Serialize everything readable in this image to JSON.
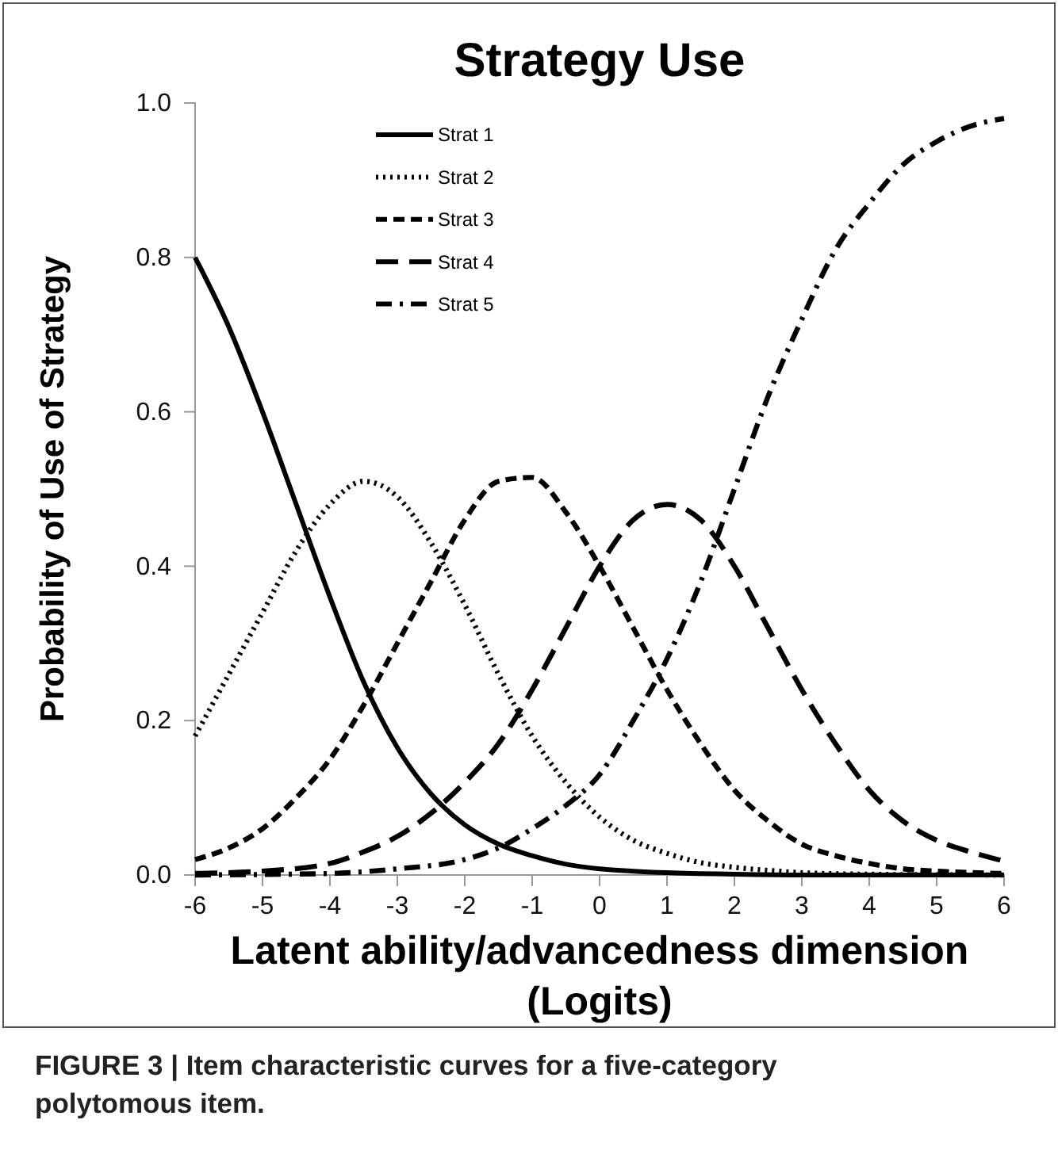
{
  "chart_data": {
    "type": "line",
    "title": "Strategy Use",
    "xlabel": "Latent ability/advancedness dimension (Logits)",
    "ylabel": "Probability of Use of Strategy",
    "xlim": [
      -6,
      6
    ],
    "xticks": [
      -6,
      -5,
      -4,
      -3,
      -2,
      -1,
      0,
      1,
      2,
      3,
      4,
      5,
      6
    ],
    "ylim": [
      0,
      1
    ],
    "yticks": [
      {
        "value": 0,
        "label": "0.0"
      },
      {
        "value": 0.2,
        "label": "0.2"
      },
      {
        "value": 0.4,
        "label": "0.4"
      },
      {
        "value": 0.6,
        "label": "0.6"
      },
      {
        "value": 0.8,
        "label": "0.8"
      },
      {
        "value": 1,
        "label": "1.0"
      }
    ],
    "grid": false,
    "legend": "top left",
    "marker": "none",
    "annotations": [
      "FIGURE 3 | Item characteristic curves for a five-category polytomous item."
    ],
    "series": [
      {
        "name": "Strat 1",
        "color": "#000000",
        "line_style": "solid",
        "x": [
          -6,
          -5.5,
          -5,
          -4.5,
          -4,
          -3.5,
          -3,
          -2.5,
          -2,
          -1.5,
          -1,
          -0.5,
          0,
          0.5,
          1,
          2,
          3,
          6
        ],
        "values": [
          0.8,
          0.71,
          0.6,
          0.48,
          0.36,
          0.25,
          0.165,
          0.105,
          0.065,
          0.04,
          0.025,
          0.014,
          0.008,
          0.005,
          0.003,
          0.001,
          0,
          0
        ]
      },
      {
        "name": "Strat 2",
        "color": "#000000",
        "line_style": "dotted",
        "x": [
          -6,
          -5.5,
          -5,
          -4.5,
          -4,
          -3.5,
          -3,
          -2.5,
          -2,
          -1.5,
          -1,
          -0.5,
          0,
          0.5,
          1,
          1.5,
          2,
          2.5,
          3,
          4,
          6
        ],
        "values": [
          0.18,
          0.26,
          0.34,
          0.42,
          0.48,
          0.51,
          0.49,
          0.43,
          0.35,
          0.26,
          0.18,
          0.12,
          0.075,
          0.045,
          0.028,
          0.016,
          0.01,
          0.006,
          0.003,
          0.001,
          0
        ]
      },
      {
        "name": "Strat 3",
        "color": "#000000",
        "line_style": "dashed",
        "x": [
          -6,
          -5.5,
          -5,
          -4.5,
          -4,
          -3.5,
          -3,
          -2.5,
          -2,
          -1.5,
          -1,
          -0.5,
          0,
          0.5,
          1,
          1.5,
          2,
          2.5,
          3,
          3.5,
          4,
          4.5,
          5,
          6
        ],
        "values": [
          0.02,
          0.035,
          0.06,
          0.1,
          0.15,
          0.22,
          0.3,
          0.38,
          0.46,
          0.51,
          0.515,
          0.47,
          0.4,
          0.32,
          0.24,
          0.17,
          0.11,
          0.07,
          0.04,
          0.025,
          0.015,
          0.008,
          0.005,
          0.002
        ]
      },
      {
        "name": "Strat 4",
        "color": "#000000",
        "line_style": "longdash",
        "x": [
          -6,
          -5,
          -4,
          -3.5,
          -3,
          -2.5,
          -2,
          -1.5,
          -1,
          -0.5,
          0,
          0.5,
          1,
          1.5,
          2,
          2.5,
          3,
          3.5,
          4,
          4.5,
          5,
          5.5,
          6
        ],
        "values": [
          0.002,
          0.005,
          0.015,
          0.03,
          0.05,
          0.08,
          0.12,
          0.17,
          0.24,
          0.32,
          0.4,
          0.46,
          0.48,
          0.46,
          0.4,
          0.32,
          0.24,
          0.17,
          0.11,
          0.07,
          0.045,
          0.03,
          0.018
        ]
      },
      {
        "name": "Strat 5",
        "color": "#000000",
        "line_style": "dashdot",
        "x": [
          -6,
          -4,
          -3,
          -2,
          -1.5,
          -1,
          -0.5,
          0,
          0.5,
          1,
          1.5,
          2,
          2.5,
          3,
          3.5,
          4,
          4.5,
          5,
          5.5,
          6
        ],
        "values": [
          0,
          0.002,
          0.008,
          0.02,
          0.035,
          0.06,
          0.09,
          0.13,
          0.2,
          0.28,
          0.38,
          0.5,
          0.62,
          0.72,
          0.81,
          0.87,
          0.92,
          0.95,
          0.97,
          0.98
        ]
      }
    ]
  }
}
